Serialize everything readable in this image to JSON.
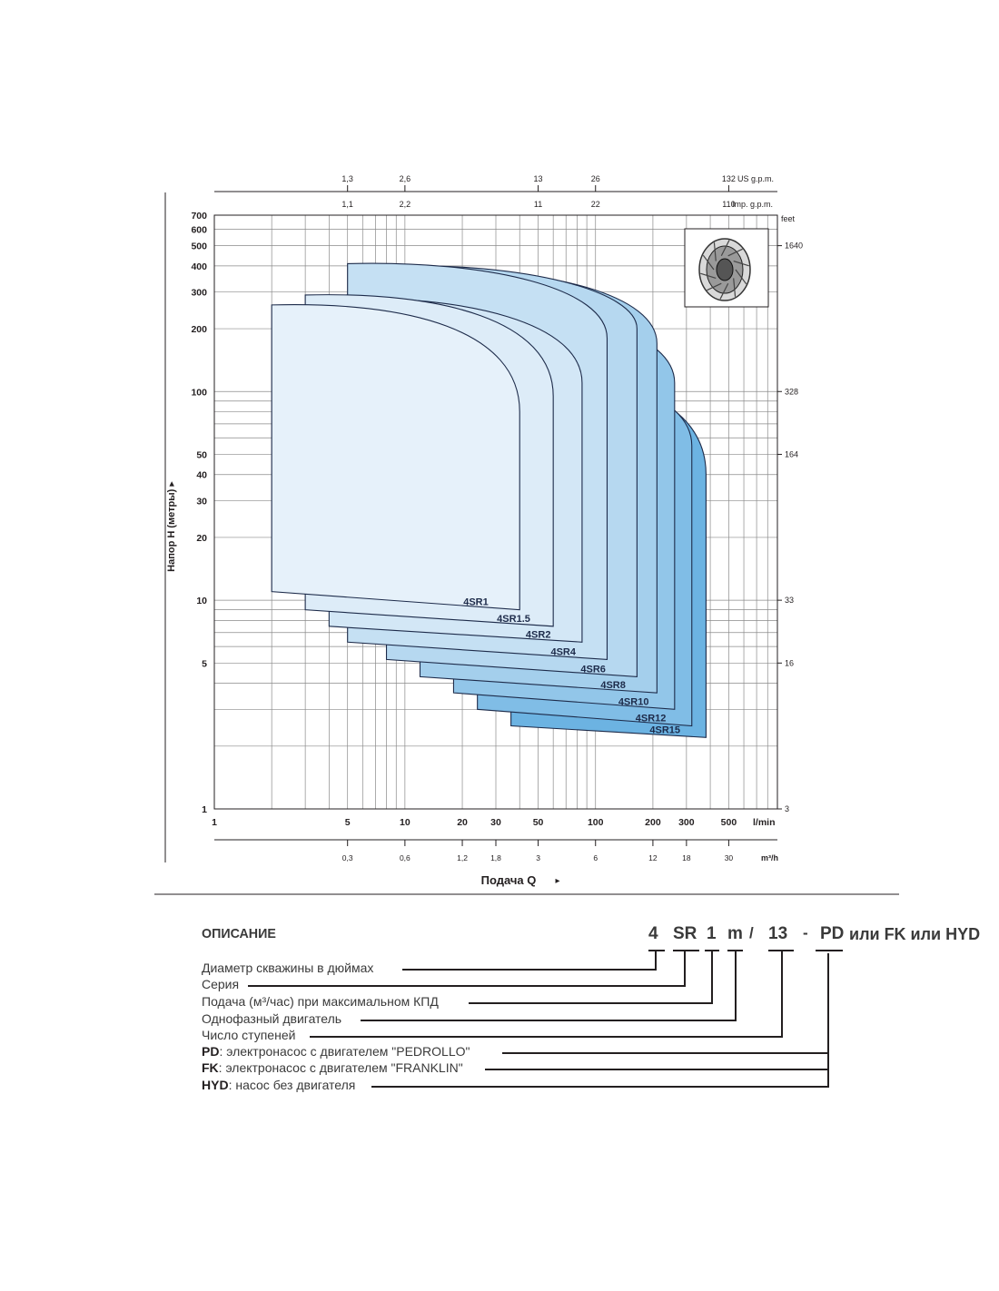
{
  "chart_data": {
    "type": "area",
    "x_scale": "log",
    "y_scale": "log",
    "xlim": [
      1,
      900
    ],
    "ylim": [
      1,
      700
    ],
    "xlabel": "Подача Q",
    "ylabel": "Напор H (метры)",
    "x_unit": "l/min",
    "x_ticks": [
      1,
      5,
      10,
      20,
      30,
      50,
      100,
      200,
      300,
      500
    ],
    "x_tick_labels": [
      "1",
      "5",
      "10",
      "20",
      "30",
      "50",
      "100",
      "200",
      "300",
      "500"
    ],
    "y_ticks": [
      1,
      5,
      10,
      20,
      30,
      40,
      50,
      100,
      200,
      300,
      400,
      500,
      600,
      700
    ],
    "y_tick_labels": [
      "1",
      "5",
      "10",
      "20",
      "30",
      "40",
      "50",
      "100",
      "200",
      "300",
      "400",
      "500",
      "600",
      "700"
    ],
    "m3h_axis": {
      "unit": "m³/h",
      "ticks": [
        {
          "lpm": 5,
          "label": "0,3"
        },
        {
          "lpm": 10,
          "label": "0,6"
        },
        {
          "lpm": 20,
          "label": "1,2"
        },
        {
          "lpm": 30,
          "label": "1,8"
        },
        {
          "lpm": 50,
          "label": "3"
        },
        {
          "lpm": 100,
          "label": "6"
        },
        {
          "lpm": 200,
          "label": "12"
        },
        {
          "lpm": 300,
          "label": "18"
        },
        {
          "lpm": 500,
          "label": "30"
        }
      ]
    },
    "imp_axis": {
      "unit": "Imp. g.p.m.",
      "ticks": [
        {
          "lpm": 5,
          "label": "1,1"
        },
        {
          "lpm": 10,
          "label": "2,2"
        },
        {
          "lpm": 50,
          "label": "11"
        },
        {
          "lpm": 100,
          "label": "22"
        },
        {
          "lpm": 500,
          "label": "110"
        }
      ]
    },
    "us_axis": {
      "unit": "US g.p.m.",
      "ticks": [
        {
          "lpm": 5,
          "label": "1,3"
        },
        {
          "lpm": 10,
          "label": "2,6"
        },
        {
          "lpm": 50,
          "label": "13"
        },
        {
          "lpm": 100,
          "label": "26"
        },
        {
          "lpm": 500,
          "label": "132"
        }
      ]
    },
    "feet_axis": {
      "unit": "feet",
      "ticks": [
        {
          "m": 500,
          "label": "1640"
        },
        {
          "m": 100,
          "label": "328"
        },
        {
          "m": 50,
          "label": "164"
        },
        {
          "m": 10,
          "label": "33"
        },
        {
          "m": 5,
          "label": "16"
        },
        {
          "m": 1,
          "label": "3"
        }
      ]
    },
    "series": [
      {
        "name": "4SR1",
        "q_min": 2,
        "q_max": 40,
        "h_max": 260,
        "h_low_left": 11,
        "h_low_right": 9,
        "knee_h": 80,
        "color": "#e6f1fa"
      },
      {
        "name": "4SR1.5",
        "q_min": 3,
        "q_max": 60,
        "h_max": 290,
        "h_low_left": 9,
        "h_low_right": 7.5,
        "knee_h": 95,
        "color": "#ddecf8"
      },
      {
        "name": "4SR2",
        "q_min": 4,
        "q_max": 85,
        "h_max": 280,
        "h_low_left": 7.5,
        "h_low_right": 6.3,
        "knee_h": 110,
        "color": "#d3e7f6"
      },
      {
        "name": "4SR4",
        "q_min": 5,
        "q_max": 115,
        "h_max": 410,
        "h_low_left": 6.3,
        "h_low_right": 5.2,
        "knee_h": 180,
        "color": "#c5e0f3"
      },
      {
        "name": "4SR6",
        "q_min": 8,
        "q_max": 165,
        "h_max": 400,
        "h_low_left": 5.2,
        "h_low_right": 4.3,
        "knee_h": 200,
        "color": "#b6d8f0"
      },
      {
        "name": "4SR8",
        "q_min": 12,
        "q_max": 210,
        "h_max": 380,
        "h_low_left": 4.3,
        "h_low_right": 3.6,
        "knee_h": 170,
        "color": "#a4cfec"
      },
      {
        "name": "4SR10",
        "q_min": 18,
        "q_max": 260,
        "h_max": 250,
        "h_low_left": 3.6,
        "h_low_right": 3.0,
        "knee_h": 110,
        "color": "#92c6e9"
      },
      {
        "name": "4SR12",
        "q_min": 24,
        "q_max": 320,
        "h_max": 130,
        "h_low_left": 3.0,
        "h_low_right": 2.5,
        "knee_h": 55,
        "color": "#80bde6"
      },
      {
        "name": "4SR15",
        "q_min": 36,
        "q_max": 380,
        "h_max": 120,
        "h_low_left": 2.5,
        "h_low_right": 2.2,
        "knee_h": 40,
        "color": "#6cb3e2"
      }
    ]
  },
  "description": {
    "title": "ОПИСАНИЕ",
    "code": {
      "p1": "4",
      "p2": "SR",
      "p3": "1",
      "p4": "m",
      "slash": "/",
      "p5": "13",
      "dash": "-",
      "p6": "PD",
      "rest": "или FK или HYD"
    },
    "rows": [
      {
        "key": "",
        "text": "Диаметр скважины в дюймах"
      },
      {
        "key": "",
        "text": "Серия"
      },
      {
        "key": "",
        "text": "Подача (м³/час) при максимальном КПД"
      },
      {
        "key": "",
        "text": "Однофазный двигатель"
      },
      {
        "key": "",
        "text": "Число ступеней"
      },
      {
        "key": "PD",
        "text": ": электронасос с двигателем \"PEDROLLO\""
      },
      {
        "key": "FK",
        "text": ": электронасос с двигателем \"FRANKLIN\""
      },
      {
        "key": "HYD",
        "text": ": насос без двигателя"
      }
    ]
  }
}
